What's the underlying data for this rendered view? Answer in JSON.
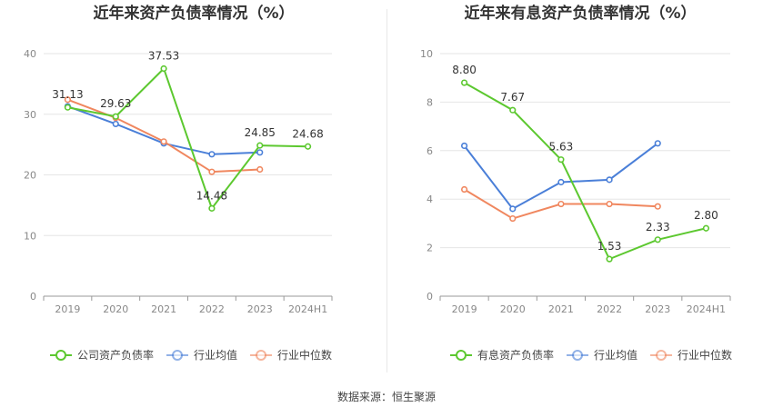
{
  "footer": {
    "source_label": "数据来源：",
    "source_name": "恒生聚源"
  },
  "colors": {
    "company": "#5cc82f",
    "avg": "#4a7fd8",
    "median": "#f0875f",
    "grid": "#e6e6e6",
    "axis": "#999999"
  },
  "chart_data": [
    {
      "type": "line",
      "title": "近年来资产负债率情况（%）",
      "categories": [
        "2019",
        "2020",
        "2021",
        "2022",
        "2023",
        "2024H1"
      ],
      "ylim": [
        0,
        40
      ],
      "yticks": [
        0,
        10,
        20,
        30,
        40
      ],
      "grid": true,
      "legend_position": "bottom",
      "series": [
        {
          "name": "公司资产负债率",
          "color_key": "company",
          "values": [
            31.13,
            29.63,
            37.53,
            14.48,
            24.85,
            24.68
          ],
          "labels": [
            "31.13",
            "29.63",
            "37.53",
            "14.48",
            "24.85",
            "24.68"
          ]
        },
        {
          "name": "行业均值",
          "color_key": "avg",
          "values": [
            31.3,
            28.4,
            25.2,
            23.4,
            23.7,
            null
          ]
        },
        {
          "name": "行业中位数",
          "color_key": "median",
          "values": [
            32.4,
            29.4,
            25.5,
            20.5,
            20.9,
            null
          ]
        }
      ]
    },
    {
      "type": "line",
      "title": "近年来有息资产负债率情况（%）",
      "categories": [
        "2019",
        "2020",
        "2021",
        "2022",
        "2023",
        "2024H1"
      ],
      "ylim": [
        0,
        10
      ],
      "yticks": [
        0,
        2,
        4,
        6,
        8,
        10
      ],
      "grid": true,
      "legend_position": "bottom",
      "series": [
        {
          "name": "有息资产负债率",
          "color_key": "company",
          "values": [
            8.8,
            7.67,
            5.63,
            1.53,
            2.33,
            2.8
          ],
          "labels": [
            "8.80",
            "7.67",
            "5.63",
            "1.53",
            "2.33",
            "2.80"
          ]
        },
        {
          "name": "行业均值",
          "color_key": "avg",
          "values": [
            6.2,
            3.6,
            4.7,
            4.8,
            6.3,
            null
          ]
        },
        {
          "name": "行业中位数",
          "color_key": "median",
          "values": [
            4.4,
            3.2,
            3.8,
            3.8,
            3.7,
            null
          ]
        }
      ]
    }
  ]
}
